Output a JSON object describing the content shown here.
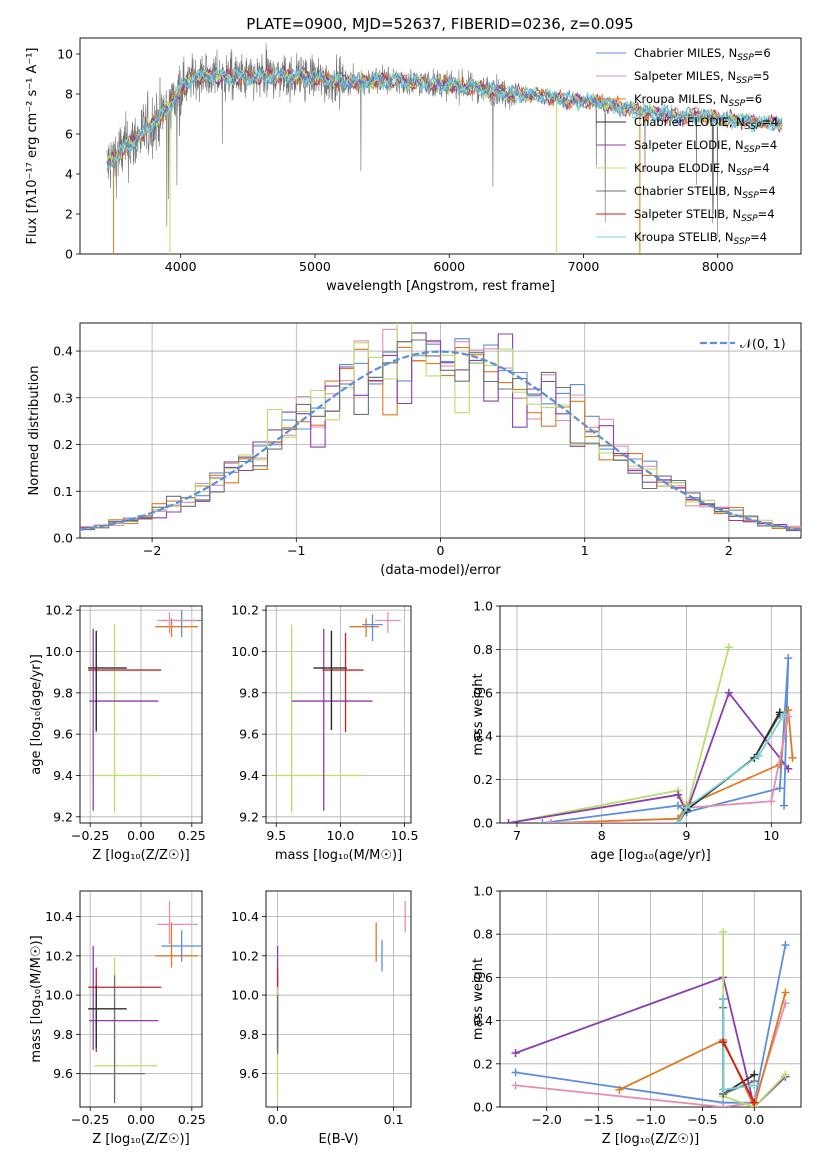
{
  "colors": {
    "chabrier_miles": "#5b8fdb",
    "salpeter_miles": "#e48fb4",
    "kroupa_miles": "#e07a22",
    "chabrier_elodie": "#2e2e2e",
    "salpeter_elodie": "#8e3cae",
    "kroupa_elodie": "#b6e06a",
    "chabrier_stelib": "#707070",
    "salpeter_stelib": "#cc2222",
    "kroupa_stelib": "#77d1d8",
    "grid": "#b0b0b0",
    "gauss": "#5b8fdb"
  },
  "chart_data": [
    {
      "id": "spectrum",
      "type": "line",
      "title": "PLATE=0900, MJD=52637, FIBERID=0236, z=0.095",
      "xlabel": "wavelength [Angstrom, rest frame]",
      "ylabel": "Flux [fλ10⁻¹⁷ erg cm⁻² s⁻¹ A⁻¹]",
      "xlim": [
        3250,
        8620
      ],
      "ylim": [
        0,
        10.8
      ],
      "xticks": [
        "4000",
        "5000",
        "6000",
        "7000",
        "8000"
      ],
      "yticks": [
        "0",
        "2",
        "4",
        "6",
        "8",
        "10"
      ],
      "legend": "top-right",
      "series": [
        {
          "name": "Chabrier MILES, N",
          "sub": "SSP",
          "suffix": "=6",
          "color": "chabrier_miles"
        },
        {
          "name": "Salpeter MILES, N",
          "sub": "SSP",
          "suffix": "=5",
          "color": "salpeter_miles"
        },
        {
          "name": "Kroupa MILES, N",
          "sub": "SSP",
          "suffix": "=6",
          "color": "kroupa_miles"
        },
        {
          "name": "Chabrier ELODIE, N",
          "sub": "SSP",
          "suffix": "=4",
          "color": "chabrier_elodie"
        },
        {
          "name": "Salpeter ELODIE, N",
          "sub": "SSP",
          "suffix": "=4",
          "color": "salpeter_elodie"
        },
        {
          "name": "Kroupa ELODIE, N",
          "sub": "SSP",
          "suffix": "=4",
          "color": "kroupa_elodie"
        },
        {
          "name": "Chabrier STELIB, N",
          "sub": "SSP",
          "suffix": "=4",
          "color": "chabrier_stelib"
        },
        {
          "name": "Salpeter STELIB, N",
          "sub": "SSP",
          "suffix": "=4",
          "color": "salpeter_stelib"
        },
        {
          "name": "Kroupa STELIB, N",
          "sub": "SSP",
          "suffix": "=4",
          "color": "kroupa_stelib"
        }
      ],
      "continuum": [
        [
          3450,
          4.4
        ],
        [
          3550,
          5.1
        ],
        [
          3700,
          5.9
        ],
        [
          3800,
          6.6
        ],
        [
          3900,
          7.2
        ],
        [
          4000,
          8.3
        ],
        [
          4100,
          8.9
        ],
        [
          4300,
          8.9
        ],
        [
          4500,
          8.8
        ],
        [
          4700,
          8.9
        ],
        [
          4900,
          8.9
        ],
        [
          5100,
          8.7
        ],
        [
          5300,
          8.6
        ],
        [
          5500,
          8.7
        ],
        [
          5700,
          8.6
        ],
        [
          5900,
          8.5
        ],
        [
          6100,
          8.4
        ],
        [
          6300,
          8.2
        ],
        [
          6500,
          8.0
        ],
        [
          6700,
          7.9
        ],
        [
          6900,
          7.7
        ],
        [
          7100,
          7.6
        ],
        [
          7300,
          7.3
        ],
        [
          7500,
          7.1
        ],
        [
          7700,
          6.9
        ],
        [
          7900,
          6.9
        ],
        [
          8100,
          6.7
        ],
        [
          8300,
          6.6
        ],
        [
          8480,
          6.5
        ]
      ]
    },
    {
      "id": "residuals",
      "type": "line",
      "xlabel": "(data-model)/error",
      "ylabel": "Normed distribution",
      "xlim": [
        -2.5,
        2.5
      ],
      "ylim": [
        0,
        0.46
      ],
      "xticks": [
        "−2",
        "−1",
        "0",
        "1",
        "2"
      ],
      "yticks": [
        "0.0",
        "0.1",
        "0.2",
        "0.3",
        "0.4"
      ],
      "legend": "top-right",
      "gauss_label": "𝒩(0, 1)"
    },
    {
      "id": "age_vs_Z",
      "type": "scatter",
      "xlabel": "Z [log₁₀(Z/Z☉)]",
      "ylabel": "age  [log₁₀(age/yr)]",
      "xlim": [
        -0.3,
        0.3
      ],
      "ylim": [
        9.17,
        10.22
      ],
      "xticks": [
        "−0.25",
        "0.00",
        "0.25"
      ],
      "yticks": [
        "9.2",
        "9.4",
        "9.6",
        "9.8",
        "10.0",
        "10.2"
      ],
      "points": [
        {
          "color": "kroupa_elodie",
          "x": -0.13,
          "y": 9.4,
          "xerr": [
            0.1,
            0.21
          ],
          "yerr": [
            0.18,
            0.73
          ]
        },
        {
          "color": "salpeter_elodie",
          "x": -0.235,
          "y": 9.76,
          "xerr": [
            0.02,
            0.32
          ],
          "yerr": [
            0.53,
            0.35
          ]
        },
        {
          "color": "salpeter_stelib",
          "x": -0.22,
          "y": 9.91,
          "xerr": [
            0.04,
            0.32
          ],
          "yerr": [
            0.3,
            0.18
          ]
        },
        {
          "color": "chabrier_stelib",
          "x": -0.22,
          "y": 9.92,
          "xerr": [
            0.04,
            0.15
          ],
          "yerr": [
            0.3,
            0.18
          ]
        },
        {
          "color": "chabrier_elodie",
          "x": -0.22,
          "y": 9.92,
          "xerr": [
            0.04,
            0.15
          ],
          "yerr": [
            0.3,
            0.18
          ]
        },
        {
          "color": "kroupa_miles",
          "x": 0.15,
          "y": 10.12,
          "xerr": [
            0.08,
            0.13
          ],
          "yerr": [
            0.05,
            0.04
          ]
        },
        {
          "color": "chabrier_miles",
          "x": 0.2,
          "y": 10.15,
          "xerr": [
            0.1,
            0.1
          ],
          "yerr": [
            0.08,
            0.05
          ]
        },
        {
          "color": "salpeter_miles",
          "x": 0.14,
          "y": 10.15,
          "xerr": [
            0.06,
            0.14
          ],
          "yerr": [
            0.06,
            0.04
          ]
        }
      ]
    },
    {
      "id": "age_vs_mass",
      "type": "scatter",
      "xlabel": "mass [log₁₀(M/M☉)]",
      "xlim": [
        9.42,
        10.55
      ],
      "ylim": [
        9.17,
        10.22
      ],
      "xticks": [
        "9.5",
        "10.0",
        "10.5"
      ],
      "yticks": [
        "9.2",
        "9.4",
        "9.6",
        "9.8",
        "10.0",
        "10.2"
      ],
      "points": [
        {
          "color": "kroupa_elodie",
          "x": 9.62,
          "y": 9.4,
          "xerr": [
            0.17,
            0.55
          ],
          "yerr": [
            0.18,
            0.73
          ]
        },
        {
          "color": "salpeter_elodie",
          "x": 9.87,
          "y": 9.76,
          "xerr": [
            0.25,
            0.38
          ],
          "yerr": [
            0.53,
            0.35
          ]
        },
        {
          "color": "salpeter_stelib",
          "x": 10.04,
          "y": 9.91,
          "xerr": [
            0.18,
            0.14
          ],
          "yerr": [
            0.3,
            0.18
          ]
        },
        {
          "color": "chabrier_stelib",
          "x": 9.93,
          "y": 9.92,
          "xerr": [
            0.14,
            0.12
          ],
          "yerr": [
            0.3,
            0.18
          ]
        },
        {
          "color": "chabrier_elodie",
          "x": 9.93,
          "y": 9.92,
          "xerr": [
            0.14,
            0.12
          ],
          "yerr": [
            0.3,
            0.18
          ]
        },
        {
          "color": "kroupa_miles",
          "x": 10.2,
          "y": 10.12,
          "xerr": [
            0.13,
            0.1
          ],
          "yerr": [
            0.05,
            0.04
          ]
        },
        {
          "color": "chabrier_miles",
          "x": 10.25,
          "y": 10.13,
          "xerr": [
            0.08,
            0.08
          ],
          "yerr": [
            0.08,
            0.05
          ]
        },
        {
          "color": "salpeter_miles",
          "x": 10.37,
          "y": 10.15,
          "xerr": [
            0.1,
            0.1
          ],
          "yerr": [
            0.06,
            0.04
          ]
        }
      ]
    },
    {
      "id": "weight_vs_age",
      "type": "line",
      "xlabel": "age  [log₁₀(age/yr)]",
      "ylabel": "mass weight",
      "xlim": [
        6.8,
        10.35
      ],
      "ylim": [
        0,
        1.0
      ],
      "xticks": [
        "7",
        "8",
        "9",
        "10"
      ],
      "yticks": [
        "0.0",
        "0.2",
        "0.4",
        "0.6",
        "0.8",
        "1.0"
      ],
      "series": [
        {
          "color": "kroupa_elodie",
          "x": [
            6.9,
            8.9,
            9.0,
            9.5
          ],
          "y": [
            0.0,
            0.15,
            0.06,
            0.81
          ]
        },
        {
          "color": "salpeter_elodie",
          "x": [
            6.9,
            8.9,
            9.0,
            9.5,
            10.2
          ],
          "y": [
            0.0,
            0.13,
            0.05,
            0.6,
            0.25
          ]
        },
        {
          "color": "chabrier_miles",
          "x": [
            7.3,
            8.9,
            9.0,
            10.1,
            10.2,
            10.15
          ],
          "y": [
            0.0,
            0.08,
            0.05,
            0.16,
            0.76,
            0.08
          ]
        },
        {
          "color": "kroupa_miles",
          "x": [
            7.4,
            8.9,
            9.0,
            10.1,
            10.2,
            10.25
          ],
          "y": [
            0.0,
            0.02,
            0.08,
            0.27,
            0.52,
            0.3
          ]
        },
        {
          "color": "salpeter_miles",
          "x": [
            7.4,
            8.9,
            9.0,
            10.0,
            10.2
          ],
          "y": [
            0.0,
            0.0,
            0.07,
            0.1,
            0.49
          ]
        },
        {
          "color": "chabrier_stelib",
          "x": [
            8.9,
            9.0,
            9.8,
            10.1
          ],
          "y": [
            0.0,
            0.06,
            0.3,
            0.5
          ]
        },
        {
          "color": "chabrier_elodie",
          "x": [
            8.9,
            9.0,
            9.8,
            10.1
          ],
          "y": [
            0.0,
            0.06,
            0.3,
            0.51
          ]
        },
        {
          "color": "kroupa_stelib",
          "x": [
            8.9,
            9.0,
            9.85,
            10.15
          ],
          "y": [
            0.0,
            0.07,
            0.31,
            0.5
          ]
        }
      ]
    },
    {
      "id": "mass_vs_Z",
      "type": "scatter",
      "xlabel": "Z [log₁₀(Z/Z☉)]",
      "ylabel": "mass [log₁₀(M/M☉)]",
      "xlim": [
        -0.3,
        0.3
      ],
      "ylim": [
        9.43,
        10.53
      ],
      "xticks": [
        "−0.25",
        "0.00",
        "0.25"
      ],
      "yticks": [
        "9.6",
        "9.8",
        "10.0",
        "10.2",
        "10.4"
      ],
      "points": [
        {
          "color": "kroupa_elodie",
          "x": -0.13,
          "y": 9.64,
          "xerr": [
            0.1,
            0.21
          ],
          "yerr": [
            0.17,
            0.55
          ]
        },
        {
          "color": "chabrier_stelib",
          "x": -0.13,
          "y": 9.6,
          "xerr": [
            0.17,
            0.15
          ],
          "yerr": [
            0.15,
            0.5
          ]
        },
        {
          "color": "salpeter_elodie",
          "x": -0.235,
          "y": 9.87,
          "xerr": [
            0.02,
            0.32
          ],
          "yerr": [
            0.15,
            0.38
          ]
        },
        {
          "color": "salpeter_stelib",
          "x": -0.22,
          "y": 10.04,
          "xerr": [
            0.04,
            0.32
          ],
          "yerr": [
            0.33,
            0.1
          ]
        },
        {
          "color": "chabrier_elodie",
          "x": -0.22,
          "y": 9.93,
          "xerr": [
            0.04,
            0.15
          ],
          "yerr": [
            0.2,
            0.12
          ]
        },
        {
          "color": "kroupa_miles",
          "x": 0.15,
          "y": 10.2,
          "xerr": [
            0.08,
            0.13
          ],
          "yerr": [
            0.06,
            0.17
          ]
        },
        {
          "color": "chabrier_miles",
          "x": 0.2,
          "y": 10.25,
          "xerr": [
            0.1,
            0.1
          ],
          "yerr": [
            0.08,
            0.08
          ]
        },
        {
          "color": "salpeter_miles",
          "x": 0.14,
          "y": 10.36,
          "xerr": [
            0.06,
            0.14
          ],
          "yerr": [
            0.1,
            0.12
          ]
        }
      ]
    },
    {
      "id": "mass_vs_ebv",
      "type": "scatter",
      "xlabel": "E(B-V)",
      "xlim": [
        -0.01,
        0.115
      ],
      "ylim": [
        9.43,
        10.53
      ],
      "xticks": [
        "0.0",
        "0.1"
      ],
      "yticks": [
        "9.6",
        "9.8",
        "10.0",
        "10.2",
        "10.4"
      ],
      "points": [
        {
          "color": "salpeter_elodie",
          "x": 0.0,
          "y": 9.87,
          "yerr": [
            0.15,
            0.38
          ]
        },
        {
          "color": "salpeter_stelib",
          "x": 0.0,
          "y": 10.04,
          "yerr": [
            0.33,
            0.1
          ]
        },
        {
          "color": "kroupa_elodie",
          "x": 0.0,
          "y": 9.64,
          "yerr": [
            0.17,
            0.4
          ]
        },
        {
          "color": "chabrier_stelib",
          "x": 0.0,
          "y": 9.8,
          "yerr": [
            0.1,
            0.2
          ]
        },
        {
          "color": "kroupa_miles",
          "x": 0.085,
          "y": 10.25,
          "yerr": [
            0.08,
            0.12
          ]
        },
        {
          "color": "chabrier_miles",
          "x": 0.09,
          "y": 10.2,
          "yerr": [
            0.08,
            0.08
          ]
        },
        {
          "color": "salpeter_miles",
          "x": 0.11,
          "y": 10.4,
          "yerr": [
            0.08,
            0.08
          ]
        }
      ]
    },
    {
      "id": "weight_vs_Z",
      "type": "line",
      "xlabel": "Z [log₁₀(Z/Z☉)]",
      "ylabel": "mass weight",
      "xlim": [
        -2.45,
        0.45
      ],
      "ylim": [
        0,
        1.0
      ],
      "xticks": [
        "−2.0",
        "−1.5",
        "−1.0",
        "−0.5",
        "0.0"
      ],
      "yticks": [
        "0.0",
        "0.2",
        "0.4",
        "0.6",
        "0.8",
        "1.0"
      ],
      "series": [
        {
          "color": "salpeter_elodie",
          "x": [
            -2.3,
            -0.3,
            0.0,
            0.3
          ],
          "y": [
            0.25,
            0.6,
            0.0,
            0.14
          ]
        },
        {
          "color": "chabrier_miles",
          "x": [
            -2.3,
            -0.3,
            0.0,
            0.3
          ],
          "y": [
            0.16,
            0.02,
            0.02,
            0.75
          ]
        },
        {
          "color": "salpeter_miles",
          "x": [
            -2.3,
            -0.3,
            0.0,
            0.3
          ],
          "y": [
            0.1,
            0.0,
            0.02,
            0.48
          ]
        },
        {
          "color": "kroupa_miles",
          "x": [
            -1.3,
            -0.3,
            0.0,
            0.3
          ],
          "y": [
            0.08,
            0.31,
            0.0,
            0.53
          ]
        },
        {
          "color": "kroupa_elodie",
          "x": [
            -0.3,
            -0.3,
            0.0,
            0.3
          ],
          "y": [
            0.81,
            0.05,
            0.0,
            0.15
          ]
        },
        {
          "color": "chabrier_elodie",
          "x": [
            -0.3,
            -0.3,
            0.0
          ],
          "y": [
            0.5,
            0.06,
            0.15
          ]
        },
        {
          "color": "chabrier_stelib",
          "x": [
            -0.3,
            -0.3,
            0.0
          ],
          "y": [
            0.46,
            0.06,
            0.12
          ]
        },
        {
          "color": "kroupa_stelib",
          "x": [
            -0.3,
            -0.3,
            0.0
          ],
          "y": [
            0.5,
            0.08,
            0.1
          ]
        },
        {
          "color": "salpeter_stelib",
          "x": [
            -0.3,
            0.0
          ],
          "y": [
            0.3,
            0.02
          ]
        }
      ]
    }
  ]
}
